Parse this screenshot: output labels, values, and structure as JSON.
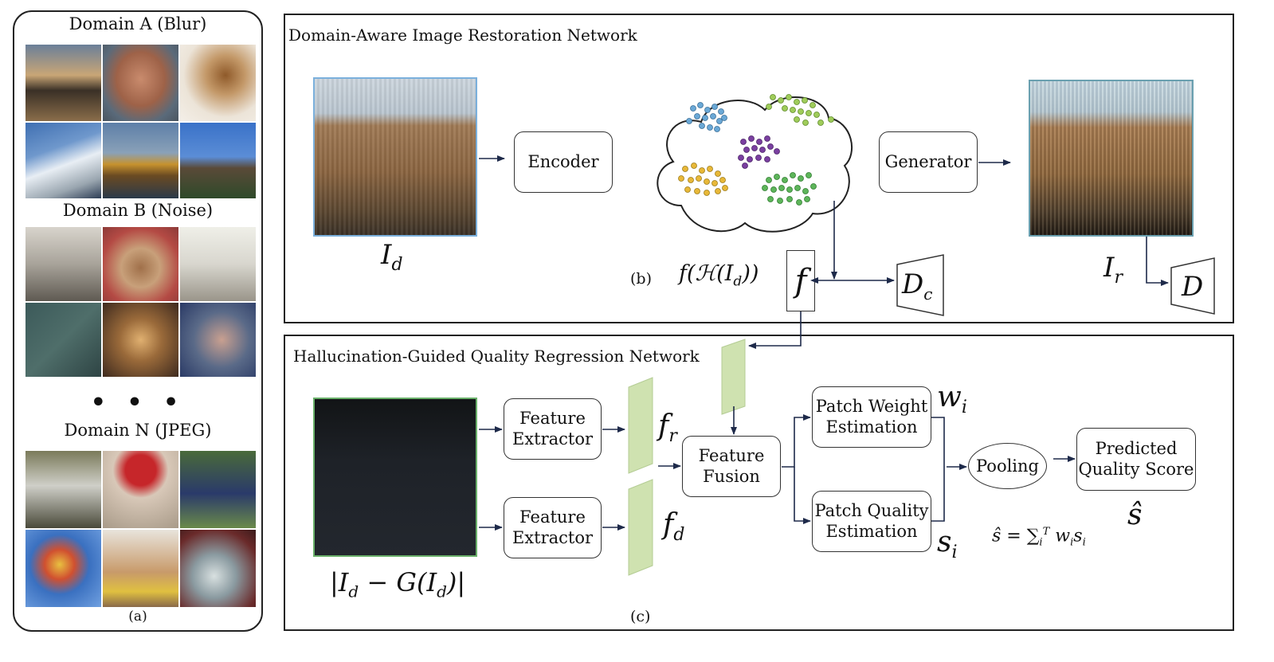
{
  "panel_a": {
    "domain_a": "Domain A (Blur)",
    "domain_b": "Domain B (Noise)",
    "dots": "• • •",
    "domain_n": "Domain N (JPEG)",
    "caption": "(a)"
  },
  "panel_b": {
    "title": "Domain-Aware Image Restoration Network",
    "encoder": "Encoder",
    "generator": "Generator",
    "label_id": "I",
    "label_id_sub": "d",
    "label_ir": "I",
    "label_ir_sub": "r",
    "caption": "(b)",
    "feature_expr": "f(ℋ(I",
    "feature_expr_sub": "d",
    "feature_expr_end": "))",
    "f_label": "f",
    "dc_label": "D",
    "dc_sub": "c",
    "d_label": "D"
  },
  "panel_c": {
    "title": "Hallucination-Guided Quality Regression Network",
    "fe1_l1": "Feature",
    "fe1_l2": "Extractor",
    "fe2_l1": "Feature",
    "fe2_l2": "Extractor",
    "fusion_l1": "Feature",
    "fusion_l2": "Fusion",
    "pwe_l1": "Patch Weight",
    "pwe_l2": "Estimation",
    "pqe_l1": "Patch Quality",
    "pqe_l2": "Estimation",
    "pooling": "Pooling",
    "pqs_l1": "Predicted",
    "pqs_l2": "Quality Score",
    "fr": "f",
    "fr_sub": "r",
    "fd": "f",
    "fd_sub": "d",
    "wi": "w",
    "wi_sub": "i",
    "si": "s",
    "si_sub": "i",
    "shat": "ŝ",
    "formula": "ŝ = ∑",
    "formula_sub": "i",
    "formula_sup": "T",
    "formula_end": "w",
    "formula_end_sub": "i",
    "formula_end2": "s",
    "formula_end2_sub": "i",
    "diff_label_1": "|I",
    "diff_sub_1": "d",
    "diff_label_2": " − G(I",
    "diff_sub_2": "d",
    "diff_label_3": ")|",
    "caption": "(c)"
  }
}
